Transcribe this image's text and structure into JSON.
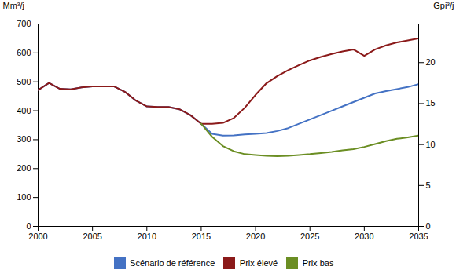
{
  "chart_data": {
    "type": "line",
    "x": [
      2000,
      2001,
      2002,
      2003,
      2004,
      2005,
      2006,
      2007,
      2008,
      2009,
      2010,
      2011,
      2012,
      2013,
      2014,
      2015,
      2016,
      2017,
      2018,
      2019,
      2020,
      2021,
      2022,
      2023,
      2024,
      2025,
      2026,
      2027,
      2028,
      2029,
      2030,
      2031,
      2032,
      2033,
      2034,
      2035
    ],
    "series": [
      {
        "name": "Scénario de référence",
        "color": "#4472C4",
        "values": [
          472,
          496,
          476,
          474,
          481,
          484,
          484,
          484,
          465,
          435,
          415,
          413,
          413,
          405,
          385,
          355,
          320,
          314,
          315,
          318,
          320,
          323,
          330,
          340,
          355,
          370,
          385,
          400,
          415,
          430,
          445,
          460,
          468,
          475,
          482,
          492
        ]
      },
      {
        "name": "Prix élevé",
        "color": "#8B1A1A",
        "values": [
          472,
          496,
          476,
          474,
          481,
          484,
          484,
          484,
          465,
          435,
          415,
          413,
          413,
          405,
          385,
          355,
          355,
          358,
          375,
          410,
          455,
          495,
          520,
          540,
          558,
          574,
          586,
          596,
          605,
          612,
          590,
          612,
          626,
          636,
          643,
          650
        ]
      },
      {
        "name": "Prix bas",
        "color": "#6B8E23",
        "values": [
          null,
          null,
          null,
          null,
          null,
          null,
          null,
          null,
          null,
          null,
          null,
          null,
          null,
          null,
          null,
          355,
          310,
          278,
          260,
          250,
          247,
          244,
          243,
          244,
          247,
          250,
          254,
          258,
          263,
          267,
          275,
          285,
          295,
          303,
          308,
          314
        ]
      }
    ],
    "xlim": [
      2000,
      2035
    ],
    "xticks": [
      2000,
      2005,
      2010,
      2015,
      2020,
      2025,
      2030,
      2035
    ],
    "ylim": [
      0,
      700
    ],
    "yticks": [
      0,
      100,
      200,
      300,
      400,
      500,
      600,
      700
    ],
    "y2lim": [
      0,
      24.72
    ],
    "y2ticks": [
      0,
      5,
      10,
      15,
      20
    ],
    "ylabel": "Mm³/j",
    "y2label": "Gpi³/j",
    "grid": false,
    "legend": "bottom"
  }
}
